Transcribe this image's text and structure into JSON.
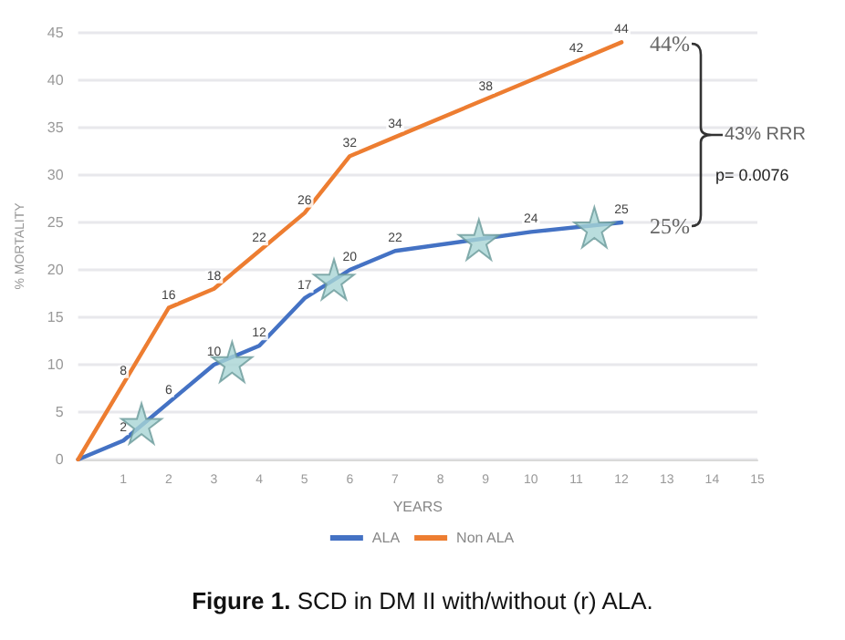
{
  "chart_data": {
    "type": "line",
    "title": "Figure 1. SCD in DM II with/without (r) ALA.",
    "xlabel": "YEARS",
    "ylabel": "% MORTALITY",
    "xlim": [
      0,
      15
    ],
    "xticks": [
      1,
      2,
      3,
      4,
      5,
      6,
      7,
      8,
      9,
      10,
      11,
      12,
      13,
      14,
      15
    ],
    "ylim": [
      0,
      45
    ],
    "yticks": [
      0,
      5,
      10,
      15,
      20,
      25,
      30,
      35,
      40,
      45
    ],
    "grid": "y",
    "legend": "bottom",
    "marker": "none",
    "series": [
      {
        "name": "ALA",
        "color": "#4472c4",
        "x": [
          0,
          1,
          2,
          3,
          4,
          5,
          6,
          7,
          10,
          12
        ],
        "values": [
          0,
          2,
          6,
          10,
          12,
          17,
          20,
          22,
          24,
          25
        ],
        "value_labels": [
          null,
          "2",
          "6",
          "10",
          "12",
          "17",
          "20",
          "22",
          "24",
          "25"
        ]
      },
      {
        "name": "Non ALA",
        "color": "#ed7d31",
        "x": [
          0,
          1,
          2,
          3,
          4,
          5,
          6,
          7,
          9,
          11,
          12
        ],
        "values": [
          0,
          8,
          16,
          18,
          22,
          26,
          32,
          34,
          38,
          42,
          44
        ],
        "value_labels": [
          null,
          "8",
          "16",
          "18",
          "22",
          "26",
          "32",
          "34",
          "38",
          "42",
          "44"
        ]
      },
      {
        "type": "scatter",
        "marker": "star",
        "color": "#a8d5d5",
        "x": [
          1.4,
          3.4,
          5.65,
          8.85,
          11.4
        ],
        "values": [
          3.8,
          10.3,
          19,
          23.2,
          24.5
        ]
      }
    ],
    "annotations": [
      "44%",
      "25%",
      "43% RRR",
      "p= 0.0076"
    ]
  }
}
